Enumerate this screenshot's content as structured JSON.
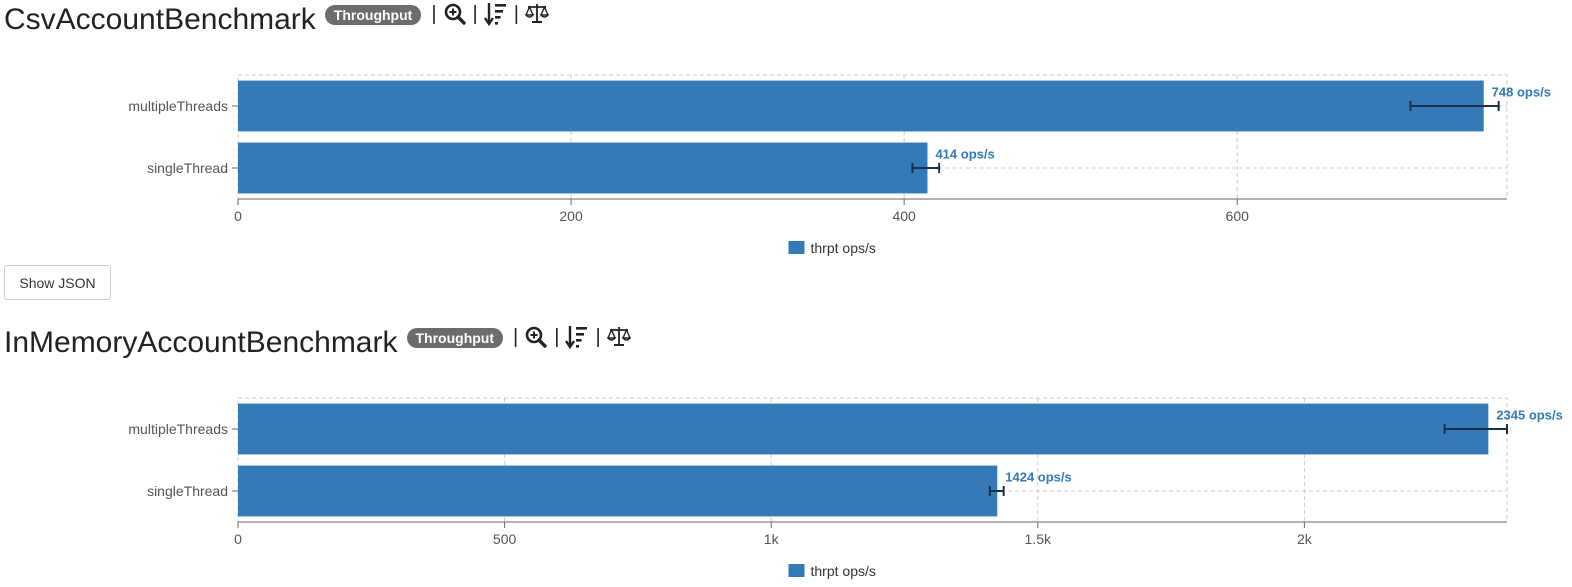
{
  "benchmarks": [
    {
      "title": "CsvAccountBenchmark",
      "badge": "Throughput",
      "separator": "|",
      "tools": [
        "zoom-icon",
        "sort-icon",
        "balance-icon"
      ]
    },
    {
      "title": "InMemoryAccountBenchmark",
      "badge": "Throughput",
      "separator": "|",
      "tools": [
        "zoom-icon",
        "sort-icon",
        "balance-icon"
      ]
    }
  ],
  "show_json_label": "Show JSON",
  "colors": {
    "bar": "#337ab7",
    "error_bar": "#1a2f4a",
    "label": "#337ab7",
    "grid": "#cccccc",
    "axis": "#666666"
  },
  "chart_data": [
    {
      "type": "bar",
      "orientation": "horizontal",
      "categories": [
        "multipleThreads",
        "singleThread"
      ],
      "series": [
        {
          "name": "thrpt ops/s",
          "values": [
            748,
            414
          ],
          "errors": [
            [
              704,
              757
            ],
            [
              405,
              421
            ]
          ],
          "data_labels": [
            "748 ops/s",
            "414 ops/s"
          ]
        }
      ],
      "xlim": [
        0,
        762
      ],
      "ticks": [
        0,
        200,
        400,
        600
      ],
      "tick_labels": [
        "0",
        "200",
        "400",
        "600"
      ],
      "grid": true,
      "legend": "bottom-center"
    },
    {
      "type": "bar",
      "orientation": "horizontal",
      "categories": [
        "multipleThreads",
        "singleThread"
      ],
      "series": [
        {
          "name": "thrpt ops/s",
          "values": [
            2345,
            1424
          ],
          "errors": [
            [
              2263,
              2380
            ],
            [
              1410,
              1436
            ]
          ],
          "data_labels": [
            "2345 ops/s",
            "1424 ops/s"
          ]
        }
      ],
      "xlim": [
        0,
        2380
      ],
      "ticks": [
        0,
        500,
        1000,
        1500,
        2000
      ],
      "tick_labels": [
        "0",
        "500",
        "1k",
        "1.5k",
        "2k"
      ],
      "grid": true,
      "legend": "bottom-center"
    }
  ]
}
